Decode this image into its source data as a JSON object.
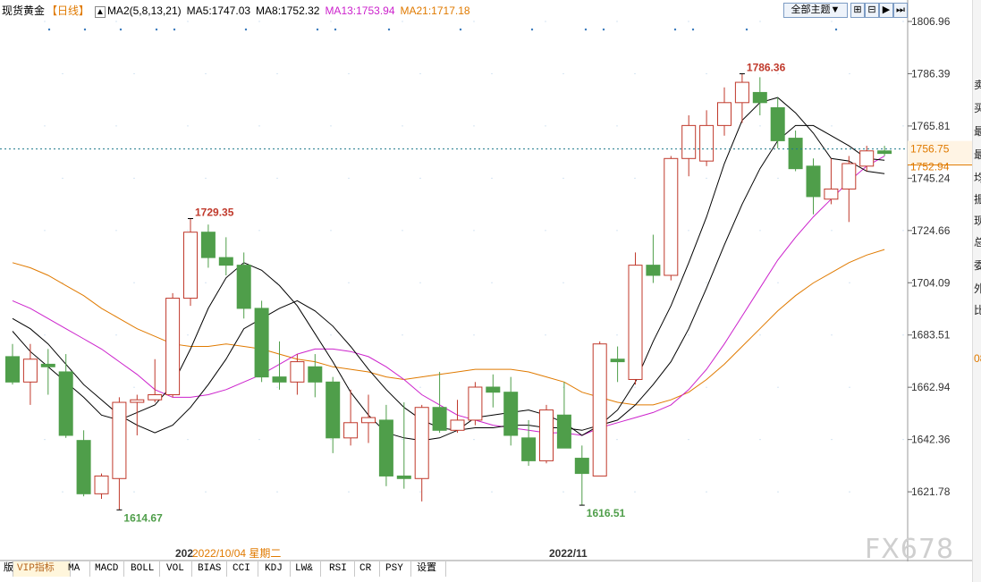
{
  "header": {
    "symbol": "现货黄金",
    "period": "【日线】",
    "ma_title": "MA2(5,8,13,21)",
    "ma5": "MA5:1747.03",
    "ma8": "MA8:1752.32",
    "ma13": "MA13:1753.94",
    "ma21": "MA21:1717.18",
    "theme_button": "全部主题▼"
  },
  "colors": {
    "up": "#c0392b",
    "down": "#4f9e4a",
    "ma5": "#000000",
    "ma8": "#000000",
    "ma13": "#cc22cc",
    "ma21": "#e07a00",
    "label_high": "#c0392b",
    "label_low": "#4f9e4a",
    "grid": "#b9d3ea",
    "last_price_line": "#1f7a8c"
  },
  "chart_data": {
    "type": "candlestick",
    "yticks": [
      1806.96,
      1786.39,
      1765.81,
      1745.24,
      1724.66,
      1704.09,
      1683.51,
      1662.94,
      1642.36,
      1621.78
    ],
    "ylim": [
      1600.7,
      1806.96
    ],
    "candles": [
      {
        "o": 1675,
        "h": 1680,
        "l": 1664,
        "c": 1665
      },
      {
        "o": 1665,
        "h": 1680,
        "l": 1656,
        "c": 1674
      },
      {
        "o": 1672,
        "h": 1678,
        "l": 1660,
        "c": 1671
      },
      {
        "o": 1669,
        "h": 1676,
        "l": 1643,
        "c": 1644
      },
      {
        "o": 1642,
        "h": 1646,
        "l": 1620,
        "c": 1621
      },
      {
        "o": 1621,
        "h": 1629,
        "l": 1619,
        "c": 1628
      },
      {
        "o": 1627,
        "h": 1659,
        "l": 1614.67,
        "c": 1657
      },
      {
        "o": 1657,
        "h": 1660,
        "l": 1644,
        "c": 1658
      },
      {
        "o": 1658,
        "h": 1674,
        "l": 1657,
        "c": 1660
      },
      {
        "o": 1660,
        "h": 1700,
        "l": 1659,
        "c": 1698
      },
      {
        "o": 1698,
        "h": 1729.35,
        "l": 1695,
        "c": 1724
      },
      {
        "o": 1724,
        "h": 1727,
        "l": 1710,
        "c": 1714
      },
      {
        "o": 1714,
        "h": 1722,
        "l": 1707,
        "c": 1711
      },
      {
        "o": 1711,
        "h": 1716,
        "l": 1690,
        "c": 1694
      },
      {
        "o": 1694,
        "h": 1697,
        "l": 1665,
        "c": 1667
      },
      {
        "o": 1667,
        "h": 1681,
        "l": 1662,
        "c": 1665
      },
      {
        "o": 1665,
        "h": 1676,
        "l": 1660,
        "c": 1673
      },
      {
        "o": 1671,
        "h": 1676,
        "l": 1659,
        "c": 1665
      },
      {
        "o": 1665,
        "h": 1667,
        "l": 1637,
        "c": 1643
      },
      {
        "o": 1643,
        "h": 1662,
        "l": 1640,
        "c": 1649
      },
      {
        "o": 1649,
        "h": 1660,
        "l": 1641,
        "c": 1651
      },
      {
        "o": 1650,
        "h": 1656,
        "l": 1624,
        "c": 1628
      },
      {
        "o": 1628,
        "h": 1657,
        "l": 1623,
        "c": 1627
      },
      {
        "o": 1627,
        "h": 1656,
        "l": 1618,
        "c": 1655
      },
      {
        "o": 1655,
        "h": 1669,
        "l": 1645,
        "c": 1646
      },
      {
        "o": 1646,
        "h": 1658,
        "l": 1645,
        "c": 1650
      },
      {
        "o": 1650,
        "h": 1665,
        "l": 1648,
        "c": 1663
      },
      {
        "o": 1663,
        "h": 1668,
        "l": 1655,
        "c": 1661
      },
      {
        "o": 1661,
        "h": 1667,
        "l": 1640,
        "c": 1644
      },
      {
        "o": 1643,
        "h": 1650,
        "l": 1632,
        "c": 1634
      },
      {
        "o": 1634,
        "h": 1656,
        "l": 1633,
        "c": 1654
      },
      {
        "o": 1652,
        "h": 1665,
        "l": 1640,
        "c": 1639
      },
      {
        "o": 1635,
        "h": 1640,
        "l": 1616.51,
        "c": 1629
      },
      {
        "o": 1628,
        "h": 1681,
        "l": 1628,
        "c": 1680
      },
      {
        "o": 1674,
        "h": 1679,
        "l": 1665,
        "c": 1673
      },
      {
        "o": 1666,
        "h": 1716,
        "l": 1664,
        "c": 1711
      },
      {
        "o": 1711,
        "h": 1723,
        "l": 1704,
        "c": 1707
      },
      {
        "o": 1707,
        "h": 1754,
        "l": 1705,
        "c": 1753
      },
      {
        "o": 1753,
        "h": 1770,
        "l": 1746,
        "c": 1766
      },
      {
        "o": 1752,
        "h": 1772,
        "l": 1750,
        "c": 1766
      },
      {
        "o": 1766,
        "h": 1781,
        "l": 1762,
        "c": 1775
      },
      {
        "o": 1775,
        "h": 1786.36,
        "l": 1767,
        "c": 1783
      },
      {
        "o": 1779,
        "h": 1785,
        "l": 1770,
        "c": 1775
      },
      {
        "o": 1773,
        "h": 1777,
        "l": 1757,
        "c": 1760
      },
      {
        "o": 1761,
        "h": 1764,
        "l": 1748,
        "c": 1749
      },
      {
        "o": 1750,
        "h": 1753,
        "l": 1731,
        "c": 1738
      },
      {
        "o": 1737,
        "h": 1753,
        "l": 1735,
        "c": 1741
      },
      {
        "o": 1741,
        "h": 1754,
        "l": 1728,
        "c": 1751
      },
      {
        "o": 1750,
        "h": 1758,
        "l": 1748,
        "c": 1756
      },
      {
        "o": 1756,
        "h": 1758,
        "l": 1754,
        "c": 1755
      }
    ],
    "ma5": [
      1685,
      1677,
      1671,
      1665,
      1659,
      1652,
      1650,
      1653,
      1656,
      1664,
      1678,
      1694,
      1706,
      1712,
      1709,
      1703,
      1695,
      1684,
      1673,
      1661,
      1652,
      1645,
      1643,
      1642,
      1643,
      1646,
      1651,
      1652,
      1653,
      1654,
      1652,
      1649,
      1644,
      1648,
      1654,
      1665,
      1681,
      1695,
      1712,
      1730,
      1751,
      1768,
      1775,
      1777,
      1771,
      1763,
      1753,
      1752,
      1748,
      1747.03
    ],
    "ma8": [
      1690,
      1686,
      1680,
      1672,
      1664,
      1658,
      1652,
      1648,
      1645,
      1648,
      1655,
      1664,
      1674,
      1686,
      1690,
      1694,
      1697,
      1693,
      1687,
      1679,
      1670,
      1662,
      1655,
      1650,
      1647,
      1646,
      1647,
      1647,
      1648,
      1648,
      1647,
      1647,
      1646,
      1648,
      1650,
      1656,
      1664,
      1673,
      1686,
      1702,
      1719,
      1735,
      1749,
      1760,
      1766,
      1766,
      1762,
      1758,
      1753,
      1752.32
    ],
    "ma13": [
      1697,
      1694,
      1690,
      1686,
      1682,
      1678,
      1673,
      1668,
      1662,
      1659,
      1659,
      1660,
      1662,
      1665,
      1668,
      1672,
      1676,
      1678,
      1678,
      1677,
      1675,
      1671,
      1666,
      1660,
      1656,
      1652,
      1650,
      1648,
      1647,
      1646,
      1645,
      1645,
      1644,
      1647,
      1649,
      1651,
      1653,
      1656,
      1662,
      1670,
      1680,
      1691,
      1702,
      1713,
      1722,
      1730,
      1737,
      1744,
      1750,
      1753.94
    ],
    "ma21": [
      1712,
      1710,
      1707,
      1703,
      1699,
      1694,
      1690,
      1686,
      1683,
      1680,
      1679,
      1679,
      1680,
      1679,
      1678,
      1676,
      1674,
      1673,
      1671,
      1670,
      1669,
      1667,
      1666,
      1667,
      1668,
      1669,
      1670,
      1670,
      1670,
      1669,
      1667,
      1665,
      1661,
      1659,
      1657,
      1656,
      1656,
      1658,
      1661,
      1666,
      1672,
      1679,
      1686,
      1693,
      1699,
      1704,
      1708,
      1712,
      1715,
      1717.18
    ],
    "annotations": {
      "high_left": "1729.35",
      "low_left": "1614.67",
      "high_right": "1786.36",
      "low_right": "1616.51"
    },
    "last_price": "1756.75",
    "last_price_value": 1756.75,
    "ma_tag": "1752.94",
    "ma_tag_value": 1752.94,
    "x_labels": {
      "left_prefix": "202",
      "cursor_date": "2022/10/04 星期二",
      "nov": "2022/11"
    }
  },
  "tabs": [
    "版",
    "VIP指标",
    "MA",
    "MACD",
    "BOLL",
    "VOL",
    "BIAS",
    "CCI",
    "KDJ",
    "LW&",
    "RSI",
    "CR",
    "PSY",
    "设置"
  ],
  "sidebar_chars": [
    "卖",
    "买",
    "最",
    "最",
    "均",
    "振",
    "现",
    "总",
    "委",
    "外",
    "比",
    "08"
  ],
  "watermark": "FX678"
}
